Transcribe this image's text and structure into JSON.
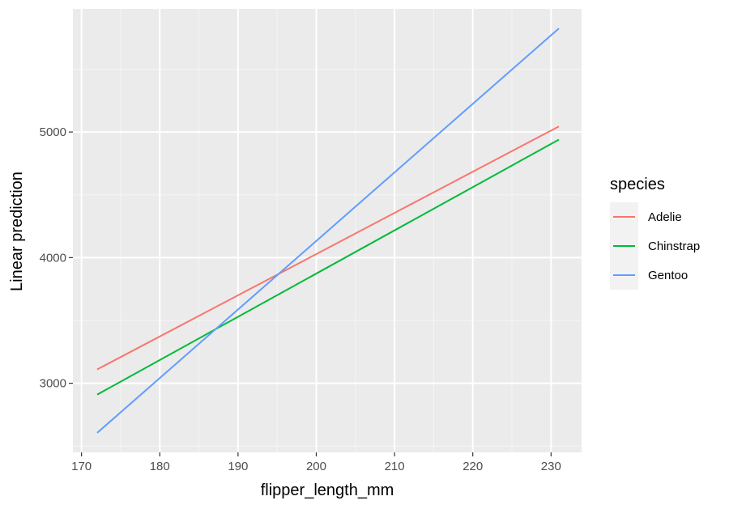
{
  "chart_data": {
    "type": "line",
    "xlabel": "flipper_length_mm",
    "ylabel": "Linear prediction",
    "xlim": [
      168.9,
      233.9
    ],
    "ylim": [
      2450,
      5980
    ],
    "xticks": [
      170,
      180,
      190,
      200,
      210,
      220,
      230
    ],
    "yticks": [
      3000,
      4000,
      5000
    ],
    "grid": true,
    "legend": {
      "title": "species",
      "position": "right"
    },
    "series": [
      {
        "name": "Adelie",
        "color": "#F8766D",
        "x": [
          172,
          231
        ],
        "y": [
          3110,
          5045
        ]
      },
      {
        "name": "Chinstrap",
        "color": "#00BA38",
        "x": [
          172,
          231
        ],
        "y": [
          2910,
          4940
        ]
      },
      {
        "name": "Gentoo",
        "color": "#619CFF",
        "x": [
          172,
          231
        ],
        "y": [
          2605,
          5825
        ]
      }
    ]
  }
}
